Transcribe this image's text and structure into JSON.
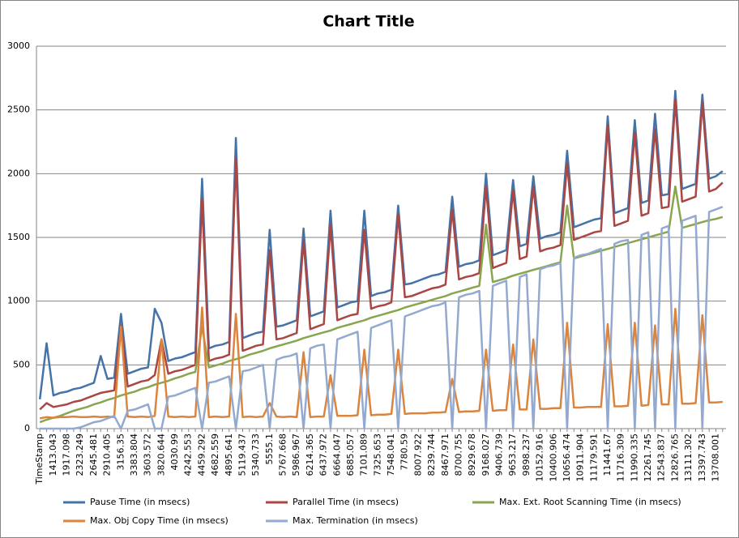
{
  "chart_data": {
    "type": "line",
    "title": "Chart Title",
    "categories": [
      "TimeStamp",
      null,
      "1413.043",
      null,
      "1917.098",
      null,
      "2323.249",
      null,
      "2645.481",
      null,
      "2910.405",
      null,
      "3156.35",
      null,
      "3383.804",
      null,
      "3603.572",
      null,
      "3820.644",
      null,
      "4030.99",
      null,
      "4242.553",
      null,
      "4459.292",
      null,
      "4682.559",
      null,
      "4895.641",
      null,
      "5119.437",
      null,
      "5340.733",
      null,
      "5555.1",
      null,
      "5767.668",
      null,
      "5986.967",
      null,
      "6214.365",
      null,
      "6437.972",
      null,
      "6664.047",
      null,
      "6885.057",
      null,
      "7101.089",
      null,
      "7325.653",
      null,
      "7548.041",
      null,
      "7780.59",
      null,
      "8007.922",
      null,
      "8239.744",
      null,
      "8467.971",
      null,
      "8700.755",
      null,
      "8929.678",
      null,
      "9168.027",
      null,
      "9406.739",
      null,
      "9653.217",
      null,
      "9898.237",
      null,
      "10152.916",
      null,
      "10400.906",
      null,
      "10656.474",
      null,
      "10911.904",
      null,
      "11179.591",
      null,
      "11441.67",
      null,
      "11716.309",
      null,
      "11990.335",
      null,
      "12261.745",
      null,
      "12543.837",
      null,
      "12826.765",
      null,
      "13111.302",
      null,
      "13397.743",
      null,
      "13708.001",
      null
    ],
    "series": [
      {
        "name": "Pause Time (in msecs)",
        "color": "#4572a7",
        "values": [
          230,
          670,
          260,
          280,
          290,
          310,
          320,
          340,
          360,
          570,
          390,
          400,
          900,
          430,
          450,
          470,
          480,
          940,
          830,
          530,
          550,
          560,
          580,
          600,
          1960,
          630,
          650,
          660,
          680,
          2280,
          710,
          730,
          750,
          760,
          1560,
          800,
          810,
          830,
          850,
          1570,
          880,
          900,
          920,
          1710,
          950,
          970,
          990,
          1000,
          1710,
          1040,
          1060,
          1070,
          1090,
          1750,
          1130,
          1140,
          1160,
          1180,
          1200,
          1210,
          1230,
          1820,
          1270,
          1290,
          1300,
          1320,
          2000,
          1360,
          1380,
          1400,
          1950,
          1430,
          1450,
          1980,
          1490,
          1510,
          1520,
          1540,
          2180,
          1580,
          1600,
          1620,
          1640,
          1650,
          2450,
          1690,
          1710,
          1730,
          2420,
          1770,
          1790,
          2470,
          1830,
          1840,
          2650,
          1880,
          1900,
          1920,
          2620,
          1960,
          1980,
          2020
        ]
      },
      {
        "name": "Parallel Time (in msecs)",
        "color": "#aa4643",
        "values": [
          150,
          200,
          170,
          180,
          190,
          210,
          220,
          240,
          260,
          280,
          290,
          300,
          810,
          330,
          350,
          370,
          380,
          420,
          700,
          430,
          450,
          460,
          480,
          500,
          1800,
          530,
          550,
          560,
          580,
          2120,
          610,
          630,
          650,
          660,
          1400,
          700,
          710,
          730,
          750,
          1480,
          780,
          800,
          820,
          1600,
          850,
          870,
          890,
          900,
          1560,
          940,
          960,
          970,
          990,
          1680,
          1030,
          1040,
          1060,
          1080,
          1100,
          1110,
          1130,
          1720,
          1170,
          1190,
          1200,
          1220,
          1900,
          1260,
          1280,
          1300,
          1870,
          1330,
          1350,
          1900,
          1390,
          1410,
          1420,
          1440,
          2080,
          1480,
          1500,
          1520,
          1540,
          1550,
          2380,
          1590,
          1610,
          1630,
          2320,
          1670,
          1690,
          2350,
          1730,
          1740,
          2580,
          1780,
          1800,
          1820,
          2560,
          1860,
          1880,
          1930
        ]
      },
      {
        "name": "Max. Ext. Root Scanning Time (in msecs)",
        "color": "#89a54e",
        "values": [
          50,
          70,
          85,
          100,
          120,
          140,
          155,
          170,
          190,
          205,
          225,
          240,
          260,
          275,
          290,
          310,
          325,
          345,
          360,
          375,
          395,
          410,
          430,
          445,
          800,
          480,
          495,
          510,
          530,
          545,
          560,
          580,
          595,
          610,
          630,
          645,
          660,
          675,
          690,
          710,
          725,
          740,
          755,
          770,
          790,
          805,
          820,
          835,
          850,
          870,
          885,
          900,
          915,
          930,
          950,
          965,
          980,
          995,
          1010,
          1025,
          1040,
          1060,
          1075,
          1090,
          1105,
          1120,
          1600,
          1150,
          1165,
          1180,
          1200,
          1215,
          1230,
          1245,
          1260,
          1275,
          1290,
          1305,
          1750,
          1335,
          1350,
          1365,
          1380,
          1395,
          1410,
          1425,
          1440,
          1455,
          1470,
          1485,
          1500,
          1515,
          1530,
          1545,
          1900,
          1575,
          1590,
          1605,
          1620,
          1635,
          1645,
          1660
        ]
      },
      {
        "name": "Max. Obj Copy Time (in msecs)",
        "color": "#db843d",
        "values": [
          80,
          90,
          85,
          90,
          90,
          95,
          90,
          90,
          95,
          90,
          95,
          90,
          800,
          95,
          90,
          95,
          90,
          100,
          700,
          95,
          90,
          95,
          90,
          95,
          950,
          90,
          95,
          90,
          95,
          900,
          90,
          95,
          90,
          95,
          200,
          95,
          90,
          95,
          90,
          600,
          90,
          95,
          95,
          420,
          100,
          100,
          100,
          105,
          620,
          105,
          110,
          110,
          115,
          620,
          115,
          120,
          120,
          120,
          125,
          125,
          130,
          390,
          130,
          135,
          135,
          140,
          620,
          140,
          145,
          145,
          660,
          150,
          150,
          700,
          155,
          155,
          160,
          160,
          830,
          165,
          165,
          170,
          170,
          170,
          820,
          175,
          175,
          180,
          830,
          180,
          185,
          810,
          190,
          190,
          940,
          195,
          195,
          200,
          890,
          205,
          205,
          210
        ]
      },
      {
        "name": "Max. Termination (in msecs)",
        "color": "#93a9cf",
        "values": [
          0,
          0,
          0,
          0,
          0,
          0,
          10,
          30,
          50,
          60,
          80,
          100,
          0,
          140,
          150,
          170,
          190,
          0,
          0,
          250,
          260,
          280,
          300,
          320,
          0,
          360,
          370,
          390,
          410,
          0,
          450,
          460,
          480,
          500,
          0,
          540,
          560,
          570,
          590,
          0,
          630,
          650,
          660,
          0,
          700,
          720,
          740,
          760,
          0,
          790,
          810,
          830,
          850,
          0,
          880,
          900,
          920,
          940,
          960,
          970,
          990,
          0,
          1030,
          1050,
          1060,
          1080,
          0,
          1120,
          1140,
          1160,
          0,
          1190,
          1210,
          0,
          1250,
          1270,
          1280,
          1300,
          0,
          1340,
          1360,
          1370,
          1390,
          1410,
          0,
          1450,
          1470,
          1480,
          0,
          1520,
          1540,
          0,
          1570,
          1590,
          0,
          1630,
          1650,
          1670,
          0,
          1700,
          1720,
          1740
        ]
      }
    ],
    "ylim": [
      0,
      3000
    ],
    "yticks": [
      0,
      500,
      1000,
      1500,
      2000,
      2500,
      3000
    ],
    "grid": true,
    "legend": "bottom"
  }
}
